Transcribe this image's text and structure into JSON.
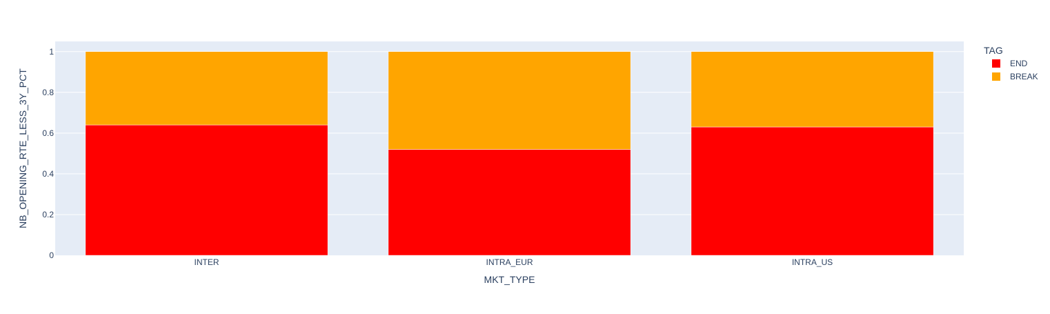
{
  "chart_data": {
    "type": "bar",
    "barmode": "stack",
    "categories": [
      "INTER",
      "INTRA_EUR",
      "INTRA_US"
    ],
    "series": [
      {
        "name": "END",
        "color": "#ff0000",
        "values": [
          0.64,
          0.52,
          0.63
        ]
      },
      {
        "name": "BREAK",
        "color": "#ffa500",
        "values": [
          0.36,
          0.48,
          0.37
        ]
      }
    ],
    "xlabel": "MKT_TYPE",
    "ylabel": "NB_OPENING_RTE_LESS_3Y_PCT",
    "ylim": [
      0,
      1.05
    ],
    "yticks": [
      0,
      0.2,
      0.4,
      0.6,
      0.8,
      1
    ],
    "ytick_labels": [
      "0",
      "0.2",
      "0.4",
      "0.6",
      "0.8",
      "1"
    ],
    "grid": true,
    "plot_background": "#e5ecf6",
    "legend": {
      "title": "TAG",
      "placement": "top-right"
    }
  }
}
